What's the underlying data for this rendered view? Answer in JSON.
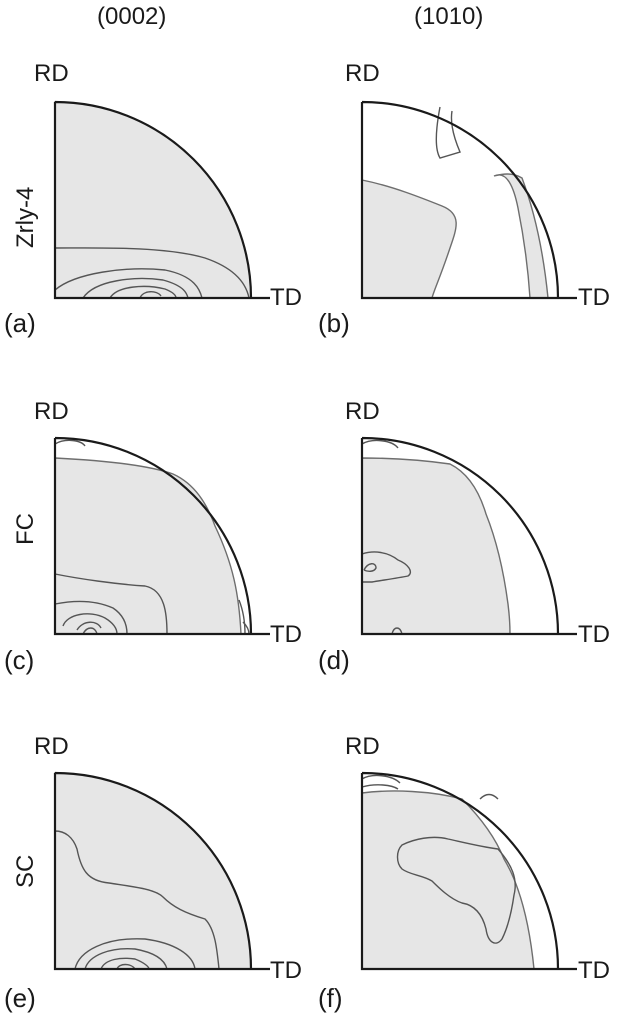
{
  "columns": [
    "(0002)",
    "(1010)"
  ],
  "rows": [
    "Zrly-4",
    "FC",
    "SC"
  ],
  "axes": {
    "rd": "RD",
    "td": "TD"
  },
  "panels": [
    {
      "id": "a",
      "label": "(a)"
    },
    {
      "id": "b",
      "label": "(b)"
    },
    {
      "id": "c",
      "label": "(c)"
    },
    {
      "id": "d",
      "label": "(d)"
    },
    {
      "id": "e",
      "label": "(e)"
    },
    {
      "id": "f",
      "label": "(f)"
    }
  ]
}
